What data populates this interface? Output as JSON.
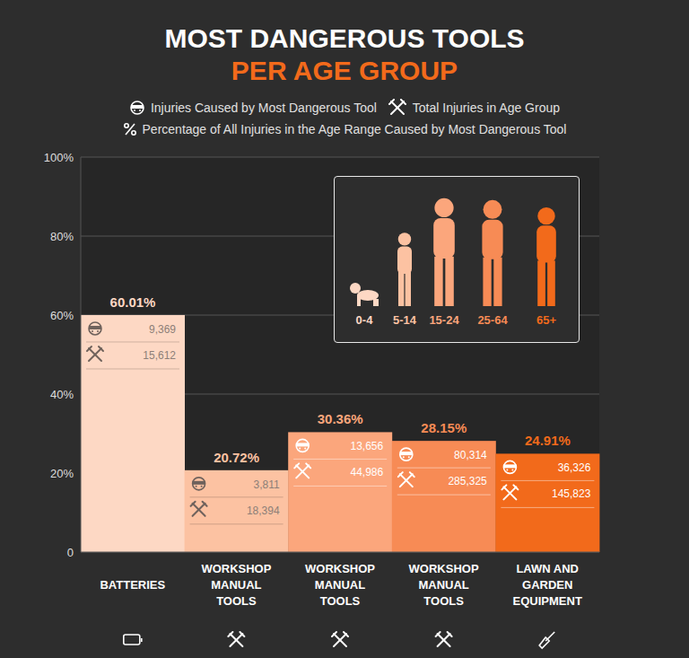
{
  "chart_data": {
    "type": "bar",
    "title": "MOST DANGEROUS TOOLS",
    "subtitle": "PER AGE GROUP",
    "categories": [
      "BATTERIES",
      "WORKSHOP MANUAL TOOLS",
      "WORKSHOP MANUAL TOOLS",
      "WORKSHOP MANUAL TOOLS",
      "LAWN AND GARDEN EQUIPMENT"
    ],
    "series": [
      {
        "name": "Percentage of All Injuries in the Age Range Caused by Most Dangerous Tool",
        "values": [
          60.01,
          20.72,
          30.36,
          28.15,
          24.91
        ],
        "value_labels": [
          "60.01%",
          "20.72%",
          "30.36%",
          "28.15%",
          "24.91%"
        ]
      }
    ],
    "injuries_by_tool": {
      "name": "Injuries Caused by Most Dangerous Tool",
      "values": [
        9369,
        3811,
        13656,
        80314,
        36326
      ],
      "value_labels": [
        "9,369",
        "3,811",
        "13,656",
        "80,314",
        "36,326"
      ]
    },
    "total_injuries": {
      "name": "Total Injuries in Age Group",
      "values": [
        15612,
        18394,
        44986,
        285325,
        145823
      ],
      "value_labels": [
        "15,612",
        "18,394",
        "44,986",
        "285,325",
        "145,823"
      ]
    },
    "age_groups": [
      "0-4",
      "5-14",
      "15-24",
      "25-64",
      "65+"
    ],
    "colors": [
      "#fdd8c4",
      "#fcc2a2",
      "#fba67c",
      "#f78b55",
      "#f26a1b"
    ],
    "ylim": [
      0,
      100
    ],
    "yticks": [
      0,
      {
        "value": 20,
        "label": "20%"
      },
      {
        "value": 40,
        "label": "40%"
      },
      {
        "value": 60,
        "label": "60%"
      },
      {
        "value": 80,
        "label": "80%"
      },
      {
        "value": 100,
        "label": "100%"
      }
    ],
    "grid": true,
    "data_labels": true,
    "legend": "top"
  }
}
